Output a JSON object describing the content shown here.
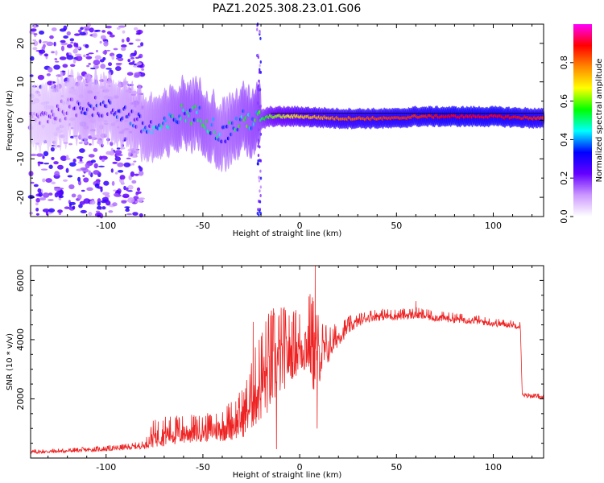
{
  "title": "PAZ1.2025.308.23.01.G06",
  "chart_data": [
    {
      "type": "heatmap",
      "title": "PAZ1.2025.308.23.01.G06",
      "xlabel": "Height of straight line (km)",
      "ylabel": "Frequency (Hz)",
      "xlim": [
        -139,
        126
      ],
      "ylim": [
        -25,
        25
      ],
      "xticks": [
        -100,
        -50,
        0,
        50,
        100
      ],
      "yticks": [
        -20,
        -10,
        0,
        10,
        20
      ],
      "colorbar": {
        "label": "Normalized spectral amplitude",
        "range": [
          0.0,
          1.0
        ],
        "ticks": [
          0.0,
          0.2,
          0.4,
          0.6,
          0.8
        ],
        "tick_labels": [
          "0.0",
          "0.2",
          "0.4",
          "0.6",
          "0.8"
        ],
        "colors": [
          "#ffffff",
          "#cc99ff",
          "#6600ff",
          "#0000ff",
          "#00ffff",
          "#00ff00",
          "#ffff00",
          "#ff8800",
          "#ff0000",
          "#ff00ff"
        ]
      },
      "ridge": {
        "description": "dominant frequency vs height",
        "x": [
          -139,
          -120,
          -110,
          -100,
          -90,
          -80,
          -70,
          -60,
          -50,
          -40,
          -30,
          -21,
          -15,
          0,
          20,
          50,
          60,
          80,
          100,
          126
        ],
        "y": [
          0,
          3,
          4,
          3,
          2,
          -2,
          -2,
          2,
          1,
          -4,
          0,
          0,
          1,
          1,
          0.5,
          0.5,
          1,
          1,
          1,
          0.5
        ],
        "amplitude": [
          0.15,
          0.2,
          0.3,
          0.25,
          0.3,
          0.35,
          0.4,
          0.45,
          0.45,
          0.4,
          0.45,
          0.5,
          0.6,
          0.7,
          0.8,
          0.85,
          0.85,
          0.9,
          0.9,
          0.85
        ]
      }
    },
    {
      "type": "line",
      "title": "",
      "xlabel": "Height of straight line (km)",
      "ylabel": "SNR (10 * v/v)",
      "xlim": [
        -139,
        126
      ],
      "ylim": [
        0,
        6500
      ],
      "xticks": [
        -100,
        -50,
        0,
        50,
        100
      ],
      "yticks": [
        2000,
        4000,
        6000
      ],
      "series": [
        {
          "name": "SNR",
          "color": "#ee2222",
          "x": [
            -139,
            -120,
            -100,
            -90,
            -80,
            -76,
            -70,
            -60,
            -50,
            -40,
            -30,
            -25,
            -20,
            -15,
            -10,
            -5,
            0,
            5,
            8,
            10,
            15,
            20,
            25,
            30,
            35,
            40,
            50,
            60,
            70,
            80,
            90,
            100,
            110,
            114,
            115,
            120,
            126
          ],
          "y": [
            200,
            240,
            300,
            350,
            420,
            700,
            800,
            850,
            900,
            1000,
            1300,
            1800,
            2500,
            2900,
            3300,
            3500,
            3700,
            3900,
            3300,
            3400,
            3700,
            4100,
            4400,
            4600,
            4750,
            4800,
            4800,
            4850,
            4750,
            4700,
            4650,
            4550,
            4500,
            4450,
            2100,
            2100,
            2050
          ],
          "noise": [
            60,
            60,
            70,
            80,
            100,
            350,
            400,
            400,
            350,
            450,
            650,
            900,
            1300,
            1400,
            1200,
            900,
            900,
            1100,
            1400,
            900,
            500,
            300,
            250,
            170,
            160,
            160,
            150,
            150,
            140,
            130,
            120,
            110,
            100,
            100,
            70,
            60,
            60
          ],
          "spikes": [
            {
              "x": 8,
              "y": 6500
            },
            {
              "x": 7,
              "y": 5300
            },
            {
              "x": 9,
              "y": 1000
            },
            {
              "x": -2,
              "y": 5000
            },
            {
              "x": -8,
              "y": 5100
            },
            {
              "x": -24,
              "y": 4600
            },
            {
              "x": -12,
              "y": 300
            },
            {
              "x": 60,
              "y": 5300
            }
          ]
        }
      ]
    }
  ]
}
